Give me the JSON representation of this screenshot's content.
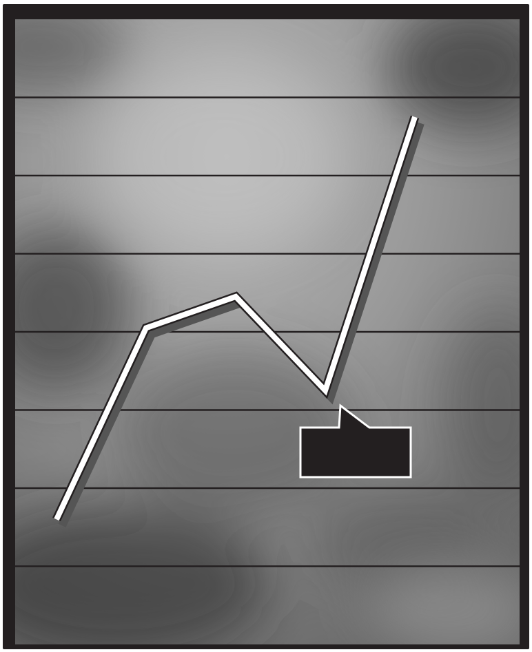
{
  "chart_data": {
    "type": "line",
    "title": "",
    "xlabel": "",
    "ylabel": "",
    "grid": true,
    "legend": "none",
    "x": [
      0,
      1,
      2,
      3,
      4
    ],
    "ylim": [
      0,
      8
    ],
    "series": [
      {
        "values": [
          1.6,
          4.05,
          4.45,
          3.25,
          6.75
        ]
      }
    ],
    "annotation": {
      "text": "",
      "points_to_index": 3,
      "box_color": "#231f20",
      "border_color": "#ffffff"
    }
  },
  "colors": {
    "frame": "#231f20",
    "background_light": "#b5b5b5",
    "background_dark": "#3c3c3c",
    "gridline": "#231f20",
    "line_fill": "#ffffff",
    "line_outline": "#231f20",
    "line_shadow": "#555555"
  }
}
